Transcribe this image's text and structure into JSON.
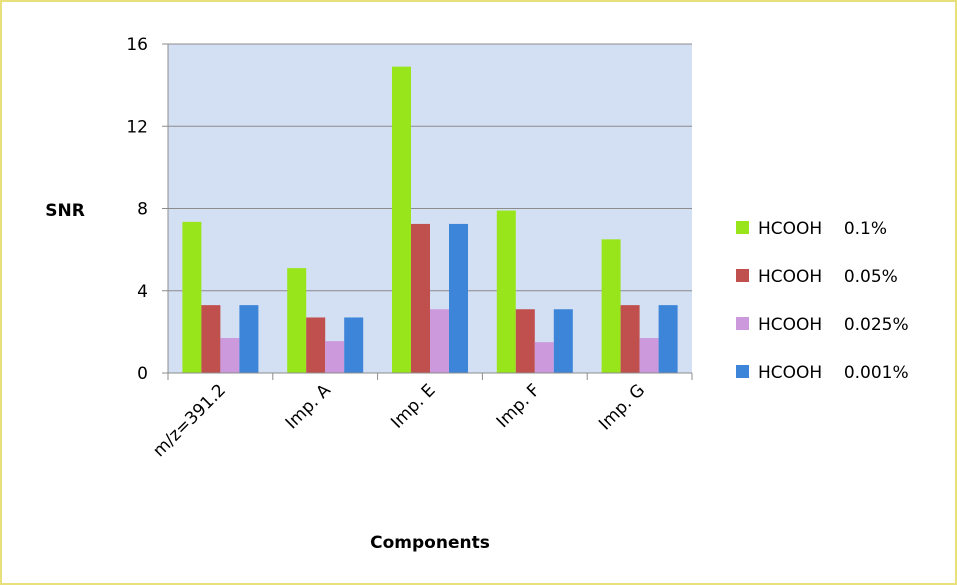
{
  "chart_data": {
    "type": "bar",
    "title": "",
    "xlabel": "Components",
    "ylabel": "SNR",
    "categories": [
      "m/z=391.2",
      "Imp. A",
      "Imp. E",
      "Imp. F",
      "Imp. G"
    ],
    "ylim": [
      0,
      16
    ],
    "yticks": [
      "0",
      "4",
      "8",
      "12",
      "16"
    ],
    "grid": true,
    "legend_position": "right",
    "series": [
      {
        "name": "HCOOH    0.1%",
        "color": "#99e51c",
        "values": [
          7.35,
          5.1,
          14.9,
          7.9,
          6.5
        ]
      },
      {
        "name": "HCOOH    0.05%",
        "color": "#c0504d",
        "values": [
          3.3,
          2.7,
          7.25,
          3.1,
          3.3
        ]
      },
      {
        "name": "HCOOH    0.025%",
        "color": "#cc99dd",
        "values": [
          1.7,
          1.55,
          3.1,
          1.5,
          1.7
        ]
      },
      {
        "name": "HCOOH    0.001%",
        "color": "#3d85d8",
        "values": [
          3.3,
          2.7,
          7.25,
          3.1,
          3.3
        ]
      }
    ],
    "colors": {
      "plot_background": "#d3dff2",
      "gridline": "#8c8c8c"
    }
  }
}
